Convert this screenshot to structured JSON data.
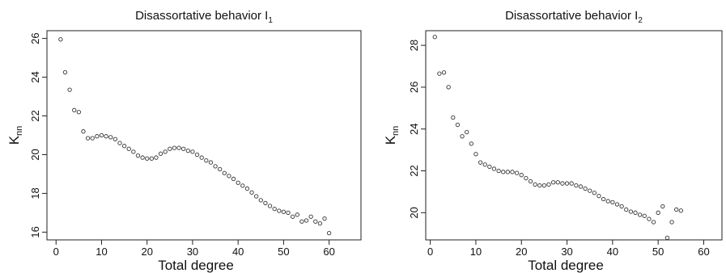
{
  "chart_data": [
    {
      "type": "scatter",
      "title": "Disassortative behavior I",
      "title_subscript": "1",
      "xlabel": "Total degree",
      "ylabel": "K",
      "ylabel_subscript": "nn",
      "xlim": [
        -2,
        67
      ],
      "ylim": [
        15.6,
        26.4
      ],
      "xticks": [
        0,
        10,
        20,
        30,
        40,
        50,
        60
      ],
      "yticks": [
        16,
        18,
        20,
        22,
        24,
        26
      ],
      "grid": false,
      "x": [
        1,
        2,
        3,
        4,
        5,
        6,
        7,
        8,
        9,
        10,
        11,
        12,
        13,
        14,
        15,
        16,
        17,
        18,
        19,
        20,
        21,
        22,
        23,
        24,
        25,
        26,
        27,
        28,
        29,
        30,
        31,
        32,
        33,
        34,
        35,
        36,
        37,
        38,
        39,
        40,
        41,
        42,
        43,
        44,
        45,
        46,
        47,
        48,
        49,
        50,
        51,
        52,
        53,
        54,
        55,
        56,
        57,
        58,
        59,
        60
      ],
      "y": [
        25.95,
        24.25,
        23.35,
        22.3,
        22.2,
        21.2,
        20.85,
        20.85,
        20.95,
        21.0,
        20.95,
        20.9,
        20.8,
        20.6,
        20.45,
        20.3,
        20.15,
        19.95,
        19.85,
        19.8,
        19.8,
        19.85,
        20.05,
        20.15,
        20.3,
        20.35,
        20.35,
        20.3,
        20.2,
        20.15,
        20.0,
        19.85,
        19.7,
        19.6,
        19.4,
        19.25,
        19.05,
        18.9,
        18.75,
        18.55,
        18.4,
        18.25,
        18.05,
        17.85,
        17.65,
        17.5,
        17.35,
        17.2,
        17.1,
        17.05,
        17.0,
        16.8,
        16.9,
        16.55,
        16.6,
        16.8,
        16.55,
        16.45,
        16.7,
        15.95
      ]
    },
    {
      "type": "scatter",
      "title": "Disassortative behavior I",
      "title_subscript": "2",
      "xlabel": "Total degree",
      "ylabel": "K",
      "ylabel_subscript": "nn",
      "xlim": [
        -1,
        64
      ],
      "ylim": [
        18.7,
        28.7
      ],
      "xticks": [
        0,
        10,
        20,
        30,
        40,
        50,
        60
      ],
      "yticks": [
        20,
        22,
        24,
        26,
        28
      ],
      "grid": false,
      "x": [
        1,
        2,
        3,
        4,
        5,
        6,
        7,
        8,
        9,
        10,
        11,
        12,
        13,
        14,
        15,
        16,
        17,
        18,
        19,
        20,
        21,
        22,
        23,
        24,
        25,
        26,
        27,
        28,
        29,
        30,
        31,
        32,
        33,
        34,
        35,
        36,
        37,
        38,
        39,
        40,
        41,
        42,
        43,
        44,
        45,
        46,
        47,
        48,
        49,
        50,
        51,
        52,
        53,
        54,
        55
      ],
      "y": [
        28.4,
        26.65,
        26.7,
        26.0,
        24.55,
        24.2,
        23.65,
        23.85,
        23.3,
        22.8,
        22.4,
        22.3,
        22.2,
        22.1,
        22.0,
        21.95,
        21.95,
        21.95,
        21.9,
        21.8,
        21.65,
        21.5,
        21.35,
        21.3,
        21.3,
        21.35,
        21.45,
        21.45,
        21.4,
        21.4,
        21.4,
        21.3,
        21.25,
        21.15,
        21.05,
        20.95,
        20.8,
        20.65,
        20.55,
        20.5,
        20.4,
        20.3,
        20.15,
        20.05,
        20.0,
        19.9,
        19.85,
        19.7,
        19.55,
        20.0,
        20.3,
        18.8,
        19.55,
        20.15,
        20.1
      ]
    }
  ]
}
